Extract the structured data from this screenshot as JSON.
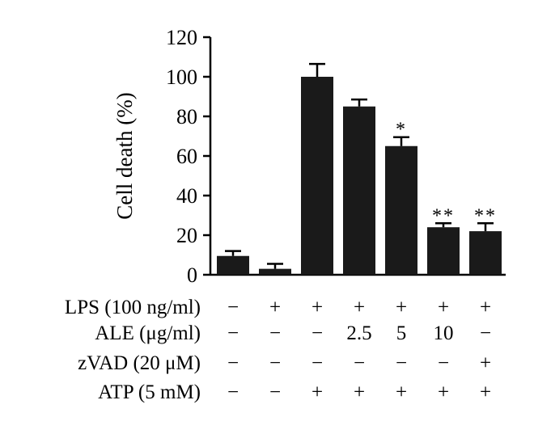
{
  "chart_data": {
    "type": "bar",
    "ylabel": "Cell death (%)",
    "ylim": [
      0,
      120
    ],
    "yticks": [
      0,
      20,
      40,
      60,
      80,
      100,
      120
    ],
    "values": [
      9.5,
      3,
      100,
      85,
      65,
      24,
      22
    ],
    "errors": [
      2.5,
      2.5,
      6.5,
      3.5,
      4.5,
      2,
      4
    ],
    "annotations": [
      "",
      "",
      "",
      "",
      "*",
      "**",
      "**"
    ],
    "bar_color": "#1a1a1a",
    "treatment_rows": [
      {
        "label": "LPS (100 ng/ml)",
        "values": [
          "−",
          "+",
          "+",
          "+",
          "+",
          "+",
          "+"
        ]
      },
      {
        "label": "ALE (μg/ml)",
        "values": [
          "−",
          "−",
          "−",
          "2.5",
          "5",
          "10",
          "−"
        ]
      },
      {
        "label": "zVAD (20 μM)",
        "values": [
          "−",
          "−",
          "−",
          "−",
          "−",
          "−",
          "+"
        ]
      },
      {
        "label": "ATP (5 mM)",
        "values": [
          "−",
          "−",
          "+",
          "+",
          "+",
          "+",
          "+"
        ]
      }
    ]
  }
}
